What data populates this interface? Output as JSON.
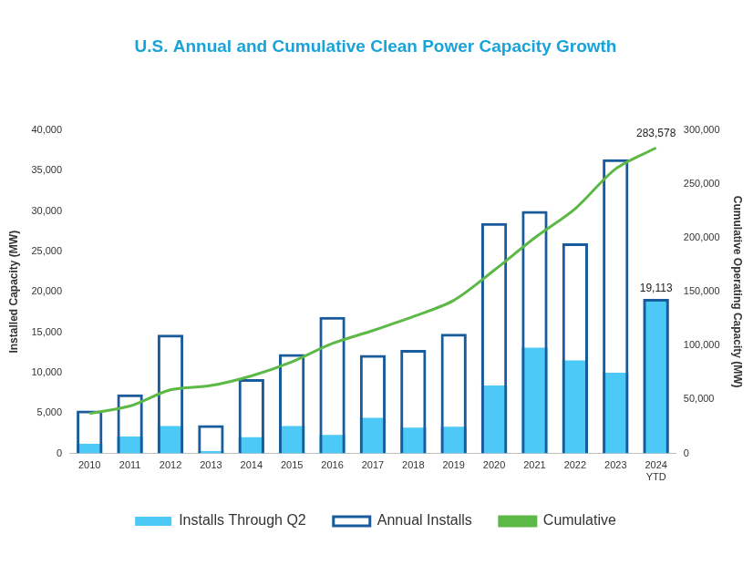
{
  "chart_data": {
    "type": "bar",
    "title": "U.S. Annual and Cumulative Clean Power Capacity Growth",
    "categories": [
      "2010",
      "2011",
      "2012",
      "2013",
      "2014",
      "2015",
      "2016",
      "2017",
      "2018",
      "2019",
      "2020",
      "2021",
      "2022",
      "2023",
      "2024 YTD"
    ],
    "y_label": "Installed Capacity (MW)",
    "y2_label": "Cumulative Operating Capacity (MW)",
    "ylim": [
      0,
      40000
    ],
    "yticks": [
      0,
      {
        "value": 5000,
        "label": "5,000"
      },
      {
        "value": 10000,
        "label": "10,000"
      },
      {
        "value": 15000,
        "label": "15,000"
      },
      {
        "value": 20000,
        "label": "20,000"
      },
      {
        "value": 25000,
        "label": "25,000"
      },
      {
        "value": 30000,
        "label": "30,000"
      },
      {
        "value": 35000,
        "label": "35,000"
      },
      {
        "value": 40000,
        "label": "40,000"
      }
    ],
    "y2lim": [
      0,
      300000
    ],
    "y2ticks": [
      0,
      {
        "value": 50000,
        "label": "50,000"
      },
      {
        "value": 100000,
        "label": "100,000"
      },
      {
        "value": 150000,
        "label": "150,000"
      },
      {
        "value": 200000,
        "label": "200,000"
      },
      {
        "value": 250000,
        "label": "250,000"
      },
      {
        "value": 300000,
        "label": "300,000"
      }
    ],
    "grid": false,
    "legend": "bottom",
    "series": [
      {
        "name": "Installs Through Q2",
        "type": "bar",
        "color": "#4cc9f6",
        "values": [
          1200,
          2100,
          3400,
          300,
          2000,
          3400,
          2300,
          4400,
          3200,
          3300,
          8400,
          13100,
          11500,
          10000,
          19113
        ],
        "value_labels": [
          null,
          null,
          null,
          null,
          null,
          null,
          null,
          null,
          null,
          null,
          null,
          null,
          null,
          null,
          "19,113"
        ]
      },
      {
        "name": "Annual Installs",
        "type": "bar",
        "color": "#1a5b9c",
        "values": [
          5300,
          7300,
          14700,
          3500,
          9200,
          12300,
          16900,
          12200,
          12800,
          14800,
          28500,
          30000,
          26000,
          36400,
          19113
        ]
      },
      {
        "name": "Cumulative",
        "type": "line",
        "color": "#5cb946",
        "axis": "y2",
        "values": [
          37000,
          44000,
          59000,
          63000,
          72000,
          85000,
          102000,
          114000,
          127000,
          142000,
          170000,
          200000,
          227000,
          264000,
          283578
        ],
        "value_labels": [
          null,
          null,
          null,
          null,
          null,
          null,
          null,
          null,
          null,
          null,
          null,
          null,
          null,
          null,
          "283,578"
        ]
      }
    ]
  }
}
